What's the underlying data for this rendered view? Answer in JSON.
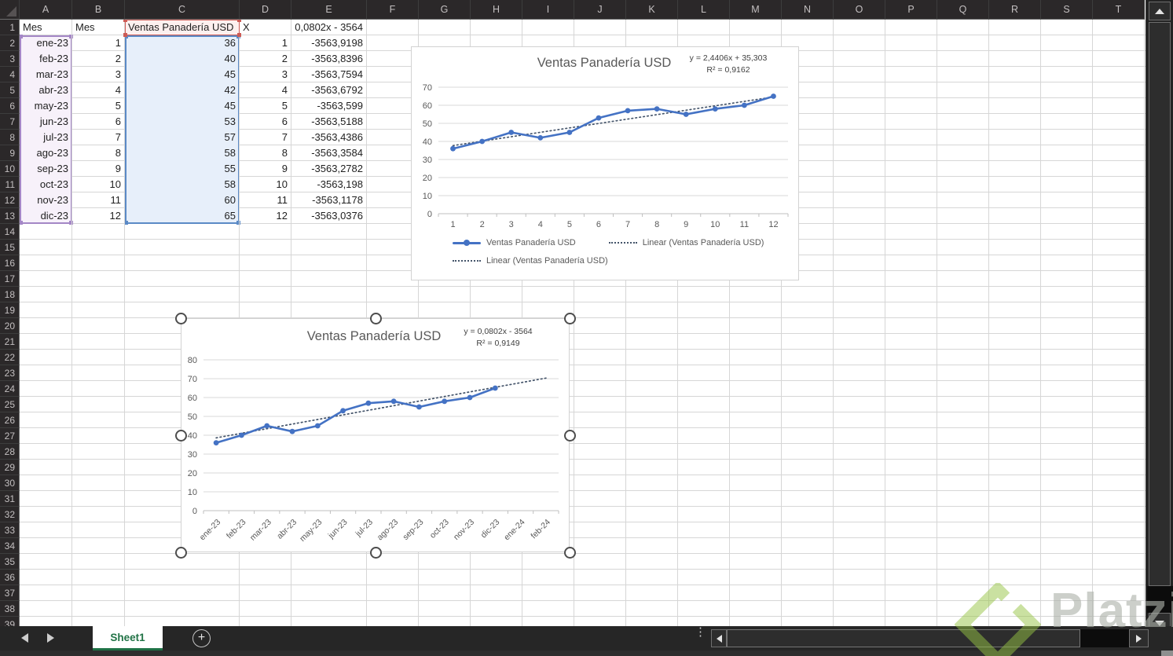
{
  "sheet": {
    "columns": [
      "A",
      "B",
      "C",
      "D",
      "E",
      "F",
      "G",
      "H",
      "I",
      "J",
      "K",
      "L",
      "M",
      "N",
      "O",
      "P",
      "Q",
      "R",
      "S",
      "T"
    ],
    "rows_visible": 39,
    "header_row": {
      "a": "Mes",
      "b": "Mes",
      "c": "Ventas Panadería USD",
      "d": "X",
      "e": "0,0802x - 3564"
    },
    "data_rows": [
      [
        "ene-23",
        "1",
        "36",
        "1",
        "-3563,9198"
      ],
      [
        "feb-23",
        "2",
        "40",
        "2",
        "-3563,8396"
      ],
      [
        "mar-23",
        "3",
        "45",
        "3",
        "-3563,7594"
      ],
      [
        "abr-23",
        "4",
        "42",
        "4",
        "-3563,6792"
      ],
      [
        "may-23",
        "5",
        "45",
        "5",
        "-3563,599"
      ],
      [
        "jun-23",
        "6",
        "53",
        "6",
        "-3563,5188"
      ],
      [
        "jul-23",
        "7",
        "57",
        "7",
        "-3563,4386"
      ],
      [
        "ago-23",
        "8",
        "58",
        "8",
        "-3563,3584"
      ],
      [
        "sep-23",
        "9",
        "55",
        "9",
        "-3563,2782"
      ],
      [
        "oct-23",
        "10",
        "58",
        "10",
        "-3563,198"
      ],
      [
        "nov-23",
        "11",
        "60",
        "11",
        "-3563,1178"
      ],
      [
        "dic-23",
        "12",
        "65",
        "12",
        "-3563,0376"
      ]
    ]
  },
  "tab_bar": {
    "sheet_name": "Sheet1",
    "add_sheet_label": "+",
    "menu_dots": "⋮"
  },
  "watermark": {
    "text": "Platzi",
    "brand_green": "#98ca3f"
  },
  "chart_data": [
    {
      "type": "line",
      "title": "Ventas Panadería USD",
      "equation": "y = 2,4406x + 35,303",
      "r_squared": "R² = 0,9162",
      "categories": [
        "1",
        "2",
        "3",
        "4",
        "5",
        "6",
        "7",
        "8",
        "9",
        "10",
        "11",
        "12"
      ],
      "series": [
        {
          "name": "Ventas Panadería USD",
          "values": [
            36,
            40,
            45,
            42,
            45,
            53,
            57,
            58,
            55,
            58,
            60,
            65
          ]
        }
      ],
      "trendline": {
        "name": "Linear (Ventas Panadería USD)",
        "y_start": 37.7,
        "y_end": 64.6
      },
      "ylim": [
        0,
        70
      ],
      "ytick_step": 10,
      "grid": true,
      "legend_position": "bottom",
      "legend_items": [
        {
          "swatch": "line",
          "label": "Ventas Panadería USD"
        },
        {
          "swatch": "dotted",
          "label": "Linear (Ventas Panadería USD)"
        },
        {
          "swatch": "dotted",
          "label": "Linear (Ventas Panadería USD)"
        }
      ],
      "colors": {
        "series": "#4472c4",
        "trend": "#44546a"
      }
    },
    {
      "type": "line",
      "title": "Ventas Panadería USD",
      "equation": "y = 0,0802x - 3564",
      "r_squared": "R² = 0,9149",
      "categories": [
        "ene-23",
        "feb-23",
        "mar-23",
        "abr-23",
        "may-23",
        "jun-23",
        "jul-23",
        "ago-23",
        "sep-23",
        "oct-23",
        "nov-23",
        "dic-23",
        "ene-24",
        "feb-24"
      ],
      "series": [
        {
          "name": "Ventas Panadería USD",
          "values": [
            36,
            40,
            45,
            42,
            45,
            53,
            57,
            58,
            55,
            58,
            60,
            65
          ]
        }
      ],
      "trendline": {
        "name": "Linear (Ventas Panadería USD)",
        "y_start": 38.6,
        "y_end": 70.3
      },
      "ylim": [
        0,
        80
      ],
      "ytick_step": 10,
      "grid": true,
      "legend_position": "none",
      "legend_items": [],
      "colors": {
        "series": "#4472c4",
        "trend": "#44546a"
      },
      "selected": true
    }
  ]
}
